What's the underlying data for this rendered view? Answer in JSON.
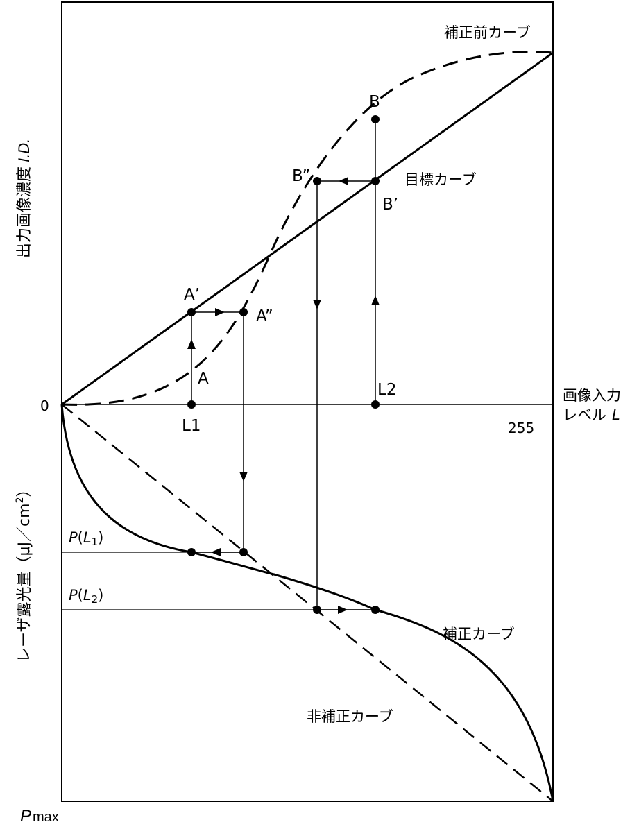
{
  "axes": {
    "y_upper_label": "出力画像濃度",
    "y_upper_symbol": "I.D.",
    "y_lower_label": "レーザ露光量（μJ／cm",
    "y_lower_sup": "2",
    "y_lower_close": "）",
    "x_label_line1": "画像入力",
    "x_label_line2": "レベル",
    "x_symbol": "L",
    "origin": "0",
    "x_max": "255",
    "p_max_p": "P",
    "p_max_sub": "max"
  },
  "curves": {
    "before": "補正前カーブ",
    "target": "目標カーブ",
    "correction": "補正カーブ",
    "non_correction": "非補正カーブ"
  },
  "points": {
    "A": "A",
    "A_prime": "A’",
    "A_dprime": "A”",
    "B": "B",
    "B_prime": "B’",
    "B_dprime": "B”",
    "L1": "L1",
    "L2": "L2"
  },
  "levels": {
    "p1_P": "P",
    "p1_L": "L",
    "p1_sub": "1",
    "p2_P": "P",
    "p2_L": "L",
    "p2_sub": "2"
  }
}
